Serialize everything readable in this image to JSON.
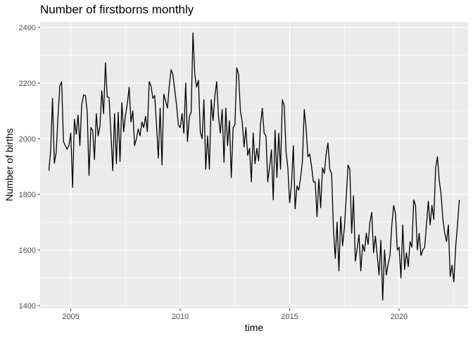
{
  "chart_data": {
    "type": "line",
    "title": "Number of firstborns monthly",
    "xlabel": "time",
    "ylabel": "Number of births",
    "xlim": [
      2003.6,
      2023.15
    ],
    "ylim": [
      1390,
      2420
    ],
    "x_ticks": [
      2005,
      2010,
      2015,
      2020
    ],
    "x_tick_labels": [
      "2005",
      "2010",
      "2015",
      "2020"
    ],
    "y_ticks": [
      1400,
      1600,
      1800,
      2000,
      2200,
      2400
    ],
    "y_tick_labels": [
      "1400",
      "1600",
      "1800",
      "2000",
      "2200",
      "2400"
    ],
    "grid": true,
    "line_color": "#000000",
    "panel_color": "#ebebeb",
    "grid_color": "#ffffff",
    "series": [
      {
        "start_year": 2004,
        "start_month": 1,
        "frequency": "monthly",
        "values": [
          1885,
          1960,
          2145,
          1912,
          1950,
          2080,
          2190,
          2205,
          1990,
          1975,
          1962,
          1975,
          2020,
          1825,
          2070,
          2015,
          2085,
          1975,
          2120,
          2157,
          2155,
          2100,
          1868,
          2040,
          2030,
          1925,
          2090,
          2010,
          2045,
          2172,
          2090,
          2273,
          2150,
          2148,
          2020,
          1885,
          2090,
          1910,
          2095,
          1918,
          2130,
          2025,
          2085,
          2125,
          2185,
          2060,
          2100,
          1975,
          2000,
          2035,
          2010,
          2060,
          2040,
          2080,
          2025,
          2205,
          2190,
          2145,
          2155,
          2050,
          1930,
          2110,
          1905,
          2160,
          2135,
          2110,
          2190,
          2248,
          2230,
          2175,
          2120,
          2050,
          2040,
          2090,
          2020,
          2200,
          1990,
          2080,
          2095,
          2380,
          2230,
          2185,
          2210,
          2025,
          2000,
          2140,
          1890,
          2010,
          1890,
          2140,
          2065,
          2155,
          2205,
          2080,
          2020,
          2105,
          1915,
          2110,
          1975,
          2065,
          1860,
          2040,
          2050,
          2255,
          2230,
          2100,
          2060,
          1970,
          2040,
          1940,
          1965,
          1845,
          2020,
          1910,
          1965,
          1920,
          2050,
          2110,
          2020,
          2010,
          1845,
          1900,
          1960,
          1780,
          2030,
          1860,
          2020,
          1890,
          2140,
          2120,
          1955,
          1895,
          1770,
          1835,
          1975,
          1748,
          1830,
          1815,
          1860,
          1920,
          2105,
          2040,
          1935,
          1945,
          1900,
          1845,
          1845,
          1720,
          1855,
          1752,
          1895,
          1875,
          1945,
          1985,
          1890,
          1875,
          1675,
          1570,
          1700,
          1525,
          1720,
          1615,
          1680,
          1790,
          1905,
          1890,
          1660,
          1795,
          1560,
          1605,
          1655,
          1525,
          1620,
          1595,
          1660,
          1620,
          1700,
          1735,
          1590,
          1650,
          1580,
          1510,
          1635,
          1420,
          1600,
          1510,
          1550,
          1580,
          1690,
          1760,
          1730,
          1600,
          1610,
          1500,
          1690,
          1530,
          1590,
          1540,
          1630,
          1610,
          1780,
          1760,
          1600,
          1660,
          1580,
          1600,
          1610,
          1690,
          1775,
          1690,
          1760,
          1710,
          1895,
          1935,
          1850,
          1800,
          1710,
          1660,
          1630,
          1690,
          1505,
          1545,
          1485,
          1610,
          1690,
          1780
        ]
      }
    ]
  }
}
